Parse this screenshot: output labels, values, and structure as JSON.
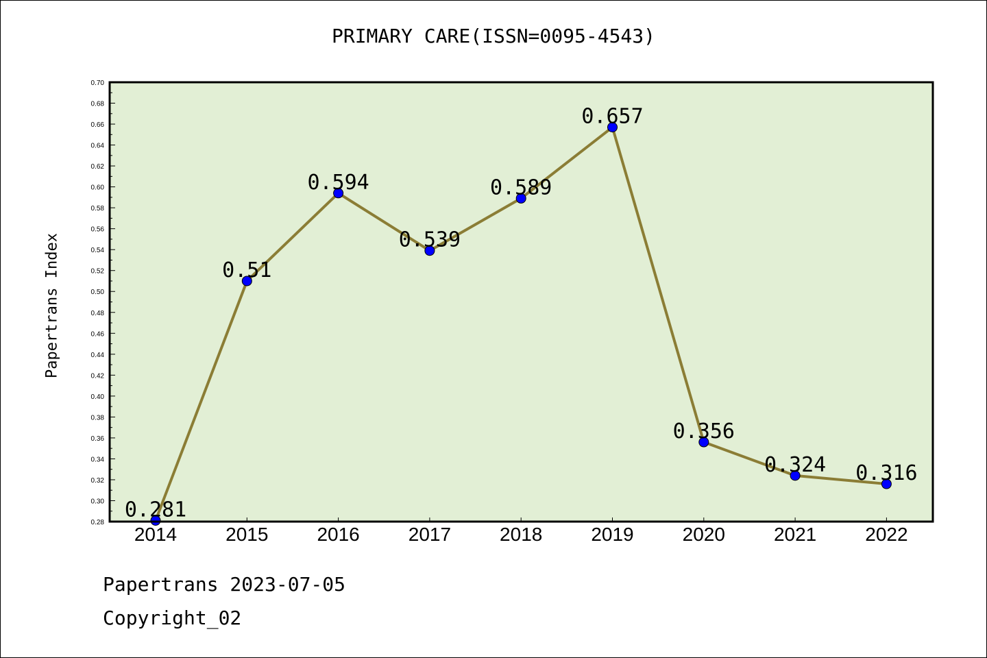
{
  "title": "PRIMARY CARE(ISSN=0095-4543)",
  "ylabel": "Papertrans Index",
  "footer": {
    "date_line": "Papertrans 2023-07-05",
    "copyright_line": "Copyright_02"
  },
  "colors": {
    "plot_background": "#e2efd5",
    "line": "#8b7d35",
    "marker": "#0000ff"
  },
  "chart_data": {
    "type": "line",
    "title": "PRIMARY CARE(ISSN=0095-4543)",
    "xlabel": "",
    "ylabel": "Papertrans Index",
    "x": [
      "2014",
      "2015",
      "2016",
      "2017",
      "2018",
      "2019",
      "2020",
      "2021",
      "2022"
    ],
    "values": [
      0.281,
      0.51,
      0.594,
      0.539,
      0.589,
      0.657,
      0.356,
      0.324,
      0.316
    ],
    "data_labels": [
      "0.281",
      "0.51",
      "0.594",
      "0.539",
      "0.589",
      "0.657",
      "0.356",
      "0.324",
      "0.316"
    ],
    "ylim": [
      0.28,
      0.7
    ],
    "yticks": [
      "0.28",
      "0.30",
      "0.32",
      "0.34",
      "0.36",
      "0.38",
      "0.40",
      "0.42",
      "0.44",
      "0.46",
      "0.48",
      "0.50",
      "0.52",
      "0.54",
      "0.56",
      "0.58",
      "0.60",
      "0.62",
      "0.64",
      "0.66",
      "0.68",
      "0.70"
    ],
    "grid": false,
    "legend": "none"
  }
}
